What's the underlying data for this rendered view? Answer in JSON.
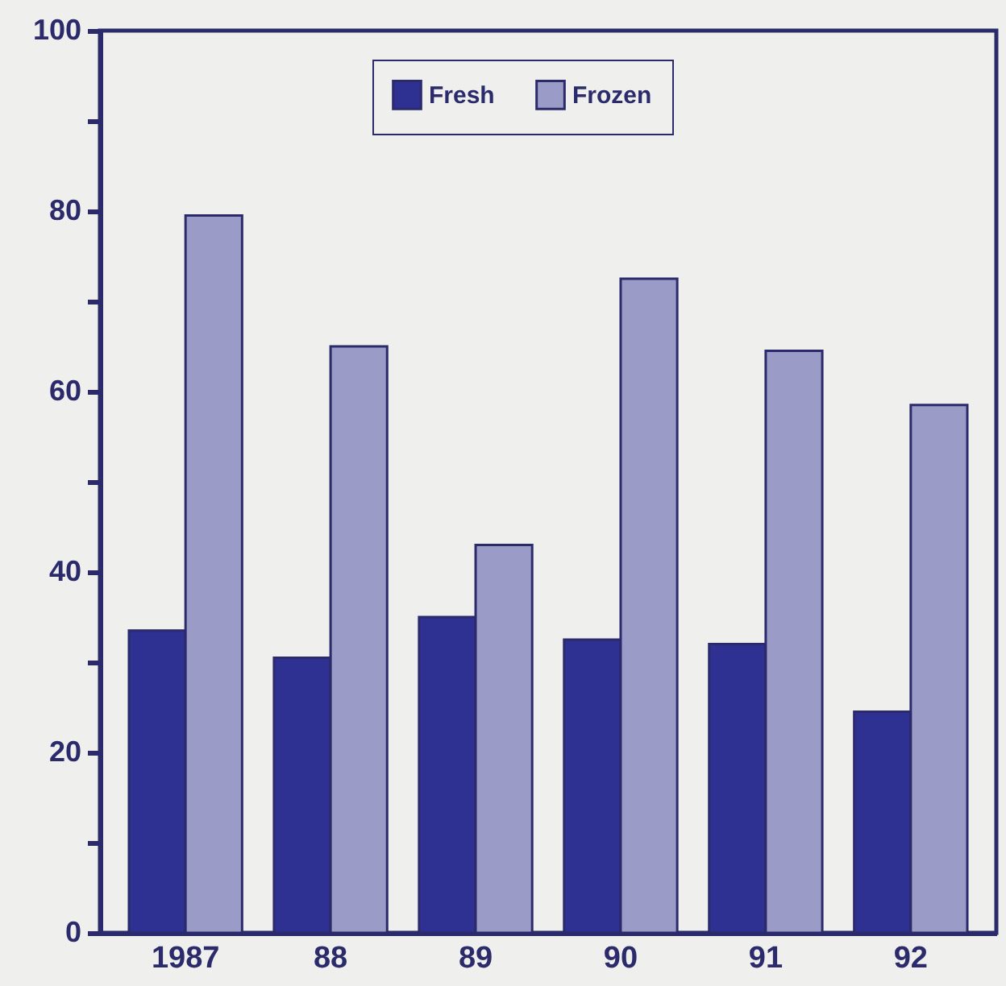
{
  "chart_data": {
    "type": "bar",
    "categories": [
      "1987",
      "88",
      "89",
      "90",
      "91",
      "92"
    ],
    "series": [
      {
        "name": "Fresh",
        "color": "#2e3192",
        "values": [
          33.5,
          30.5,
          35,
          32.5,
          32,
          24.5
        ]
      },
      {
        "name": "Frozen",
        "color": "#9b9bc8",
        "values": [
          79.5,
          65,
          43,
          72.5,
          64.5,
          58.5
        ]
      }
    ],
    "ylim": [
      0,
      100
    ],
    "yticks": [
      0,
      {
        "value": 10,
        "label": null
      },
      20,
      {
        "value": 30,
        "label": null
      },
      40,
      {
        "value": 50,
        "label": null
      },
      60,
      {
        "value": 70,
        "label": null
      },
      80,
      {
        "value": 90,
        "label": null
      },
      100
    ],
    "legend": "top"
  }
}
